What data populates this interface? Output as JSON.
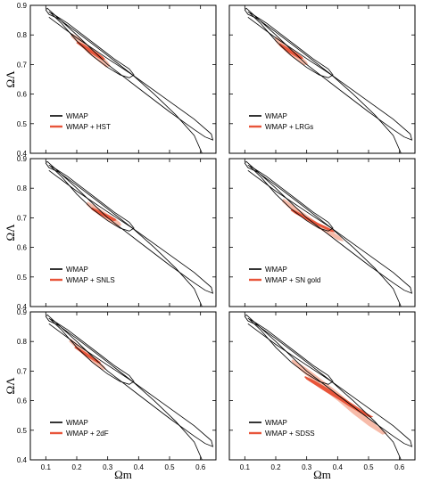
{
  "chart_data": {
    "type": "contour",
    "xlim": [
      0.05,
      0.65
    ],
    "ylim": [
      0.4,
      0.9
    ],
    "xticks": [
      "0.1",
      "0.2",
      "0.3",
      "0.4",
      "0.5",
      "0.6"
    ],
    "yticks": [
      "0.4",
      "0.5",
      "0.6",
      "0.7",
      "0.8",
      "0.9"
    ],
    "xlabel": "Ωm",
    "ylabel": "ΩΛ",
    "colors": {
      "wmap": "#000000",
      "combined": "#e8553a",
      "combined_light": "#f4a48c"
    },
    "wmap_contours": {
      "inner": [
        [
          0.115,
          0.875
        ],
        [
          0.15,
          0.84
        ],
        [
          0.2,
          0.78
        ],
        [
          0.25,
          0.73
        ],
        [
          0.3,
          0.69
        ],
        [
          0.34,
          0.665
        ],
        [
          0.37,
          0.655
        ],
        [
          0.385,
          0.665
        ],
        [
          0.37,
          0.685
        ],
        [
          0.32,
          0.72
        ],
        [
          0.27,
          0.76
        ],
        [
          0.22,
          0.8
        ],
        [
          0.17,
          0.84
        ],
        [
          0.125,
          0.87
        ],
        [
          0.11,
          0.878
        ]
      ],
      "outer": [
        [
          0.105,
          0.89
        ],
        [
          0.2,
          0.8
        ],
        [
          0.3,
          0.7
        ],
        [
          0.4,
          0.62
        ],
        [
          0.5,
          0.54
        ],
        [
          0.58,
          0.48
        ],
        [
          0.615,
          0.455
        ],
        [
          0.64,
          0.445
        ],
        [
          0.635,
          0.465
        ],
        [
          0.58,
          0.515
        ],
        [
          0.48,
          0.59
        ],
        [
          0.38,
          0.665
        ],
        [
          0.3,
          0.73
        ],
        [
          0.2,
          0.81
        ],
        [
          0.14,
          0.855
        ],
        [
          0.11,
          0.87
        ],
        [
          0.1,
          0.885
        ]
      ],
      "line": [
        [
          0.11,
          0.86
        ],
        [
          0.2,
          0.79
        ],
        [
          0.3,
          0.72
        ],
        [
          0.38,
          0.665
        ],
        [
          0.45,
          0.6
        ],
        [
          0.52,
          0.53
        ],
        [
          0.58,
          0.46
        ],
        [
          0.605,
          0.4
        ]
      ]
    },
    "panels": [
      {
        "legend": [
          "WMAP",
          "WMAP + HST"
        ],
        "region": [
          [
            0.185,
            0.805
          ],
          [
            0.21,
            0.79
          ],
          [
            0.25,
            0.755
          ],
          [
            0.28,
            0.73
          ],
          [
            0.3,
            0.71
          ],
          [
            0.31,
            0.695
          ],
          [
            0.295,
            0.69
          ],
          [
            0.265,
            0.715
          ],
          [
            0.235,
            0.74
          ],
          [
            0.2,
            0.775
          ],
          [
            0.18,
            0.795
          ]
        ]
      },
      {
        "legend": [
          "WMAP",
          "WMAP + LRGs"
        ],
        "region": [
          [
            0.2,
            0.795
          ],
          [
            0.22,
            0.78
          ],
          [
            0.25,
            0.755
          ],
          [
            0.28,
            0.73
          ],
          [
            0.3,
            0.71
          ],
          [
            0.305,
            0.7
          ],
          [
            0.29,
            0.698
          ],
          [
            0.26,
            0.72
          ],
          [
            0.23,
            0.745
          ],
          [
            0.205,
            0.77
          ],
          [
            0.195,
            0.785
          ]
        ]
      },
      {
        "legend": [
          "WMAP",
          "WMAP + SNLS"
        ],
        "region": [
          [
            0.235,
            0.755
          ],
          [
            0.26,
            0.74
          ],
          [
            0.29,
            0.72
          ],
          [
            0.32,
            0.7
          ],
          [
            0.34,
            0.685
          ],
          [
            0.345,
            0.675
          ],
          [
            0.33,
            0.67
          ],
          [
            0.3,
            0.69
          ],
          [
            0.27,
            0.71
          ],
          [
            0.245,
            0.73
          ],
          [
            0.23,
            0.745
          ]
        ]
      },
      {
        "legend": [
          "WMAP",
          "WMAP + SN gold"
        ],
        "region": [
          [
            0.225,
            0.765
          ],
          [
            0.26,
            0.74
          ],
          [
            0.3,
            0.71
          ],
          [
            0.34,
            0.68
          ],
          [
            0.38,
            0.655
          ],
          [
            0.41,
            0.635
          ],
          [
            0.42,
            0.62
          ],
          [
            0.4,
            0.625
          ],
          [
            0.36,
            0.65
          ],
          [
            0.32,
            0.675
          ],
          [
            0.28,
            0.705
          ],
          [
            0.24,
            0.735
          ],
          [
            0.22,
            0.755
          ]
        ]
      },
      {
        "legend": [
          "WMAP",
          "WMAP + 2dF"
        ],
        "region": [
          [
            0.18,
            0.81
          ],
          [
            0.21,
            0.785
          ],
          [
            0.24,
            0.76
          ],
          [
            0.27,
            0.735
          ],
          [
            0.29,
            0.715
          ],
          [
            0.295,
            0.705
          ],
          [
            0.28,
            0.705
          ],
          [
            0.25,
            0.73
          ],
          [
            0.22,
            0.755
          ],
          [
            0.19,
            0.785
          ],
          [
            0.175,
            0.8
          ]
        ]
      },
      {
        "legend": [
          "WMAP",
          "WMAP + SDSS"
        ],
        "region": [
          [
            0.255,
            0.74
          ],
          [
            0.3,
            0.71
          ],
          [
            0.35,
            0.67
          ],
          [
            0.4,
            0.63
          ],
          [
            0.45,
            0.585
          ],
          [
            0.5,
            0.54
          ],
          [
            0.54,
            0.505
          ],
          [
            0.56,
            0.49
          ],
          [
            0.545,
            0.485
          ],
          [
            0.5,
            0.515
          ],
          [
            0.45,
            0.555
          ],
          [
            0.4,
            0.6
          ],
          [
            0.35,
            0.64
          ],
          [
            0.3,
            0.685
          ],
          [
            0.26,
            0.72
          ],
          [
            0.25,
            0.735
          ]
        ]
      }
    ]
  }
}
